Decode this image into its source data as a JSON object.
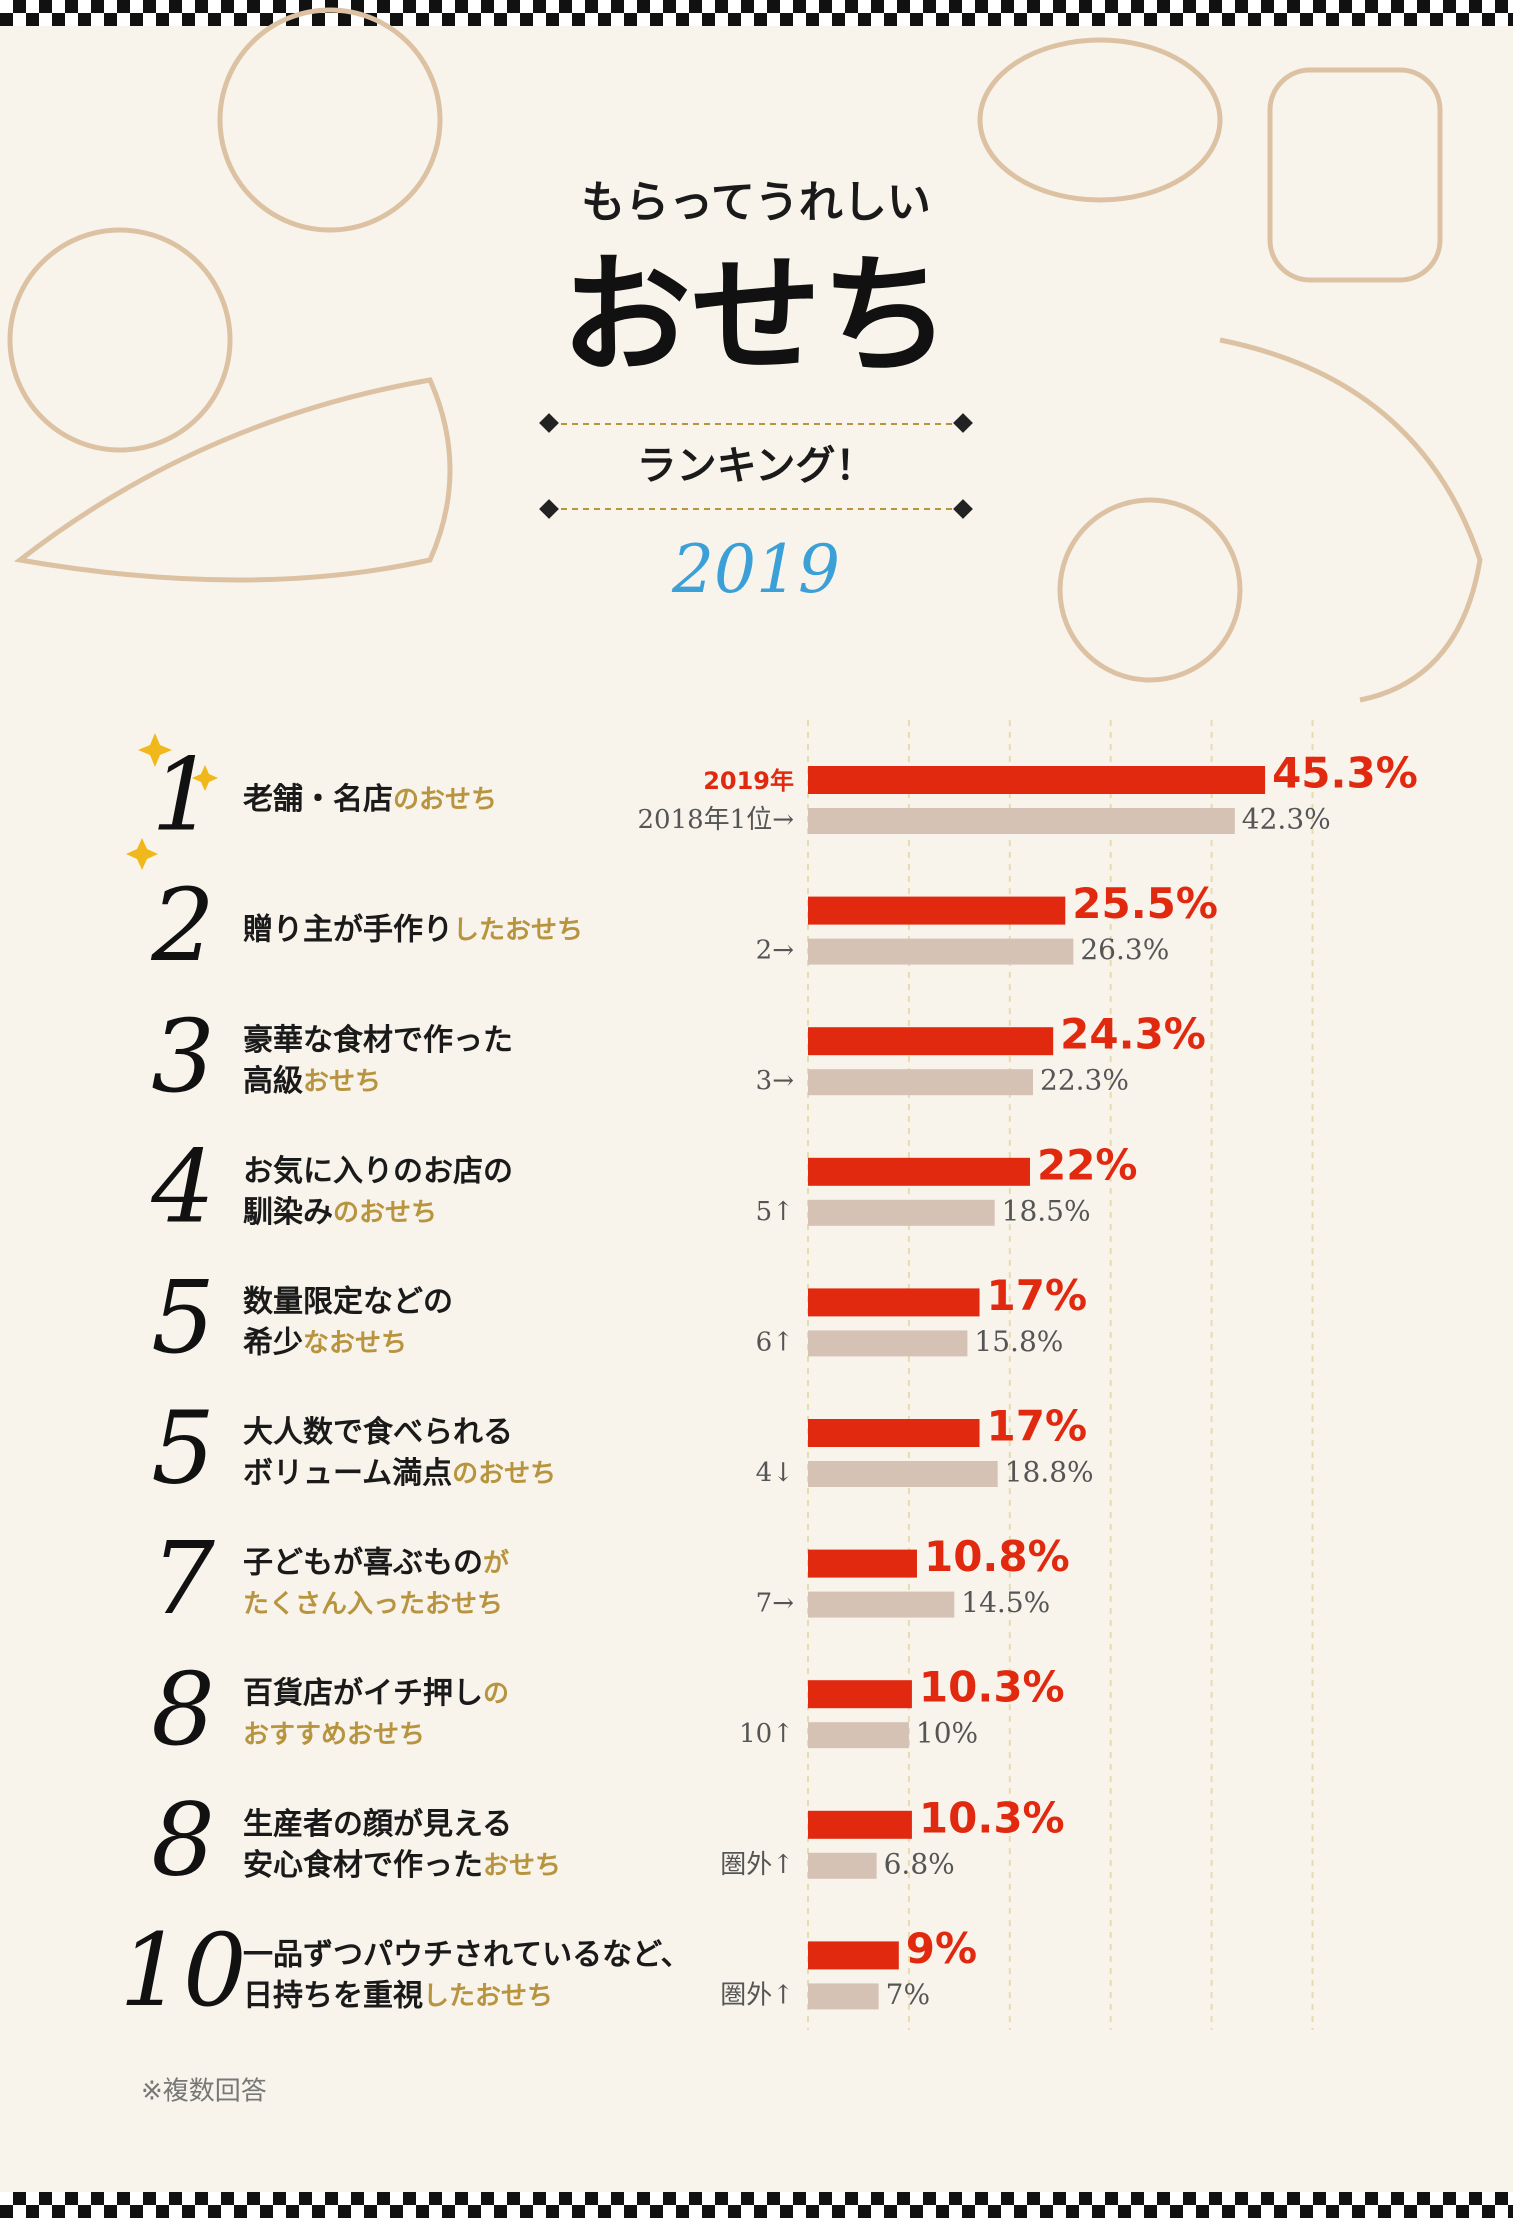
{
  "header": {
    "subtitle": "もらってうれしい",
    "title": "おせち",
    "heading": "ランキング！",
    "year": "2019"
  },
  "chart_data": {
    "type": "bar",
    "orientation": "horizontal",
    "ranks": [
      1,
      2,
      3,
      4,
      5,
      5,
      7,
      8,
      8,
      10
    ],
    "labels": [
      [
        [
          {
            "text": "老舗・名店",
            "accent": false
          },
          {
            "text": "のおせち",
            "accent": true
          }
        ]
      ],
      [
        [
          {
            "text": "贈り主が手作り",
            "accent": false
          },
          {
            "text": "したおせち",
            "accent": true
          }
        ]
      ],
      [
        [
          {
            "text": "豪華な食材で作った",
            "accent": false
          }
        ],
        [
          {
            "text": "高級",
            "accent": false
          },
          {
            "text": "おせち",
            "accent": true
          }
        ]
      ],
      [
        [
          {
            "text": "お気に入りのお店の",
            "accent": false
          }
        ],
        [
          {
            "text": "馴染み",
            "accent": false
          },
          {
            "text": "のおせち",
            "accent": true
          }
        ]
      ],
      [
        [
          {
            "text": "数量限定などの",
            "accent": false
          }
        ],
        [
          {
            "text": "希少",
            "accent": false
          },
          {
            "text": "なおせち",
            "accent": true
          }
        ]
      ],
      [
        [
          {
            "text": "大人数で食べられる",
            "accent": false
          }
        ],
        [
          {
            "text": "ボリューム満点",
            "accent": false
          },
          {
            "text": "のおせち",
            "accent": true
          }
        ]
      ],
      [
        [
          {
            "text": "子どもが喜ぶもの",
            "accent": false
          },
          {
            "text": "が",
            "accent": true
          }
        ],
        [
          {
            "text": "たくさん入ったおせち",
            "accent": true
          }
        ]
      ],
      [
        [
          {
            "text": "百貨店がイチ押し",
            "accent": false
          },
          {
            "text": "の",
            "accent": true
          }
        ],
        [
          {
            "text": "おすすめおせち",
            "accent": true
          }
        ]
      ],
      [
        [
          {
            "text": "生産者の顔が見える",
            "accent": false
          }
        ],
        [
          {
            "text": "安心食材で作った",
            "accent": false
          },
          {
            "text": "おせち",
            "accent": true
          }
        ]
      ],
      [
        [
          {
            "text": "一品ずつパウチされているなど、",
            "accent": false
          }
        ],
        [
          {
            "text": "日持ちを重視",
            "accent": false
          },
          {
            "text": "したおせち",
            "accent": true
          }
        ]
      ]
    ],
    "previous_ranks": [
      "2018年1位→",
      "2→",
      "3→",
      "5↑",
      "6↑",
      "4↓",
      "7→",
      "10↑",
      "圏外↑",
      "圏外↑"
    ],
    "series": [
      {
        "name": "2019年",
        "color": "#e1290f",
        "values": [
          45.3,
          25.5,
          24.3,
          22,
          17,
          17,
          10.8,
          10.3,
          10.3,
          9
        ],
        "value_labels": [
          "45.3%",
          "25.5%",
          "24.3%",
          "22%",
          "17%",
          "17%",
          "10.8%",
          "10.3%",
          "10.3%",
          "9%"
        ]
      },
      {
        "color": "#d5c2b5",
        "values": [
          42.3,
          26.3,
          22.3,
          18.5,
          15.8,
          18.8,
          14.5,
          10,
          6.8,
          7
        ],
        "value_labels": [
          "42.3%",
          "26.3%",
          "22.3%",
          "18.5%",
          "15.8%",
          "18.8%",
          "14.5%",
          "10%",
          "6.8%",
          "7%"
        ]
      }
    ],
    "xlim": [
      0,
      50
    ],
    "xticks": [
      0,
      10,
      20,
      30,
      40,
      50
    ],
    "grid": true
  },
  "footnote": "※複数回答"
}
